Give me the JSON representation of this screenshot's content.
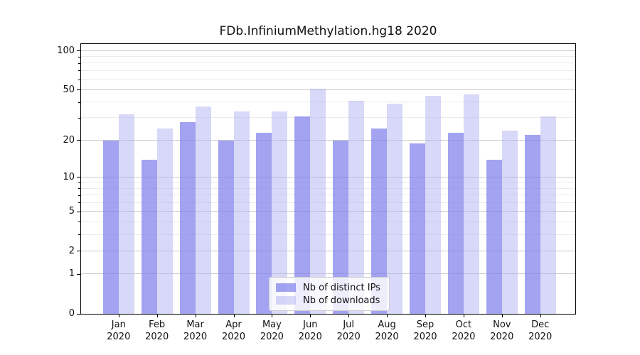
{
  "title": "FDb.InfiniumMethylation.hg18 2020",
  "legend": {
    "items": [
      {
        "label": "Nb of distinct IPs",
        "series_key": "ips"
      },
      {
        "label": "Nb of downloads",
        "series_key": "downloads"
      }
    ]
  },
  "colors": {
    "ips_fill": "rgba(127,127,236,0.72)",
    "downloads_fill": "rgba(177,177,241,0.50)",
    "grid_major": "#c9c9c9",
    "grid_minor": "#ebebeb",
    "spine": "#000000"
  },
  "chart_data": {
    "type": "bar",
    "title": "FDb.InfiniumMethylation.hg18 2020",
    "categories": [
      "Jan",
      "Feb",
      "Mar",
      "Apr",
      "May",
      "Jun",
      "Jul",
      "Aug",
      "Sep",
      "Oct",
      "Nov",
      "Dec"
    ],
    "year_label": "2020",
    "series": [
      {
        "name": "Nb of distinct IPs",
        "values": [
          20,
          14,
          28,
          20,
          23,
          31,
          20,
          25,
          19,
          23,
          14,
          22
        ]
      },
      {
        "name": "Nb of downloads",
        "values": [
          32,
          25,
          37,
          34,
          34,
          51,
          41,
          39,
          45,
          46,
          24,
          31
        ]
      }
    ],
    "xlabel": "",
    "ylabel": "",
    "y_axis": {
      "scale": "log1p",
      "major_ticks": [
        0,
        1,
        2,
        5,
        10,
        20,
        50,
        100
      ],
      "minor_ticks": [
        3,
        4,
        6,
        7,
        8,
        9,
        30,
        40,
        60,
        70,
        80,
        90
      ],
      "ylim": [
        0,
        113
      ]
    },
    "grid": "on",
    "legend_position": "lower center"
  }
}
